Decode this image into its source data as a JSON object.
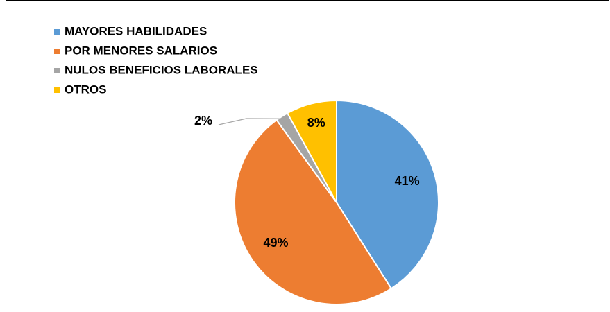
{
  "chart_data": {
    "type": "pie",
    "categories": [
      "MAYORES HABILIDADES",
      "POR MENORES SALARIOS",
      "NULOS BENEFICIOS LABORALES",
      "OTROS"
    ],
    "values": [
      41,
      49,
      2,
      8
    ],
    "value_labels": [
      "41%",
      "49%",
      "2%",
      "8%"
    ],
    "colors": [
      "#5b9bd5",
      "#ed7d31",
      "#a5a5a5",
      "#ffc000"
    ],
    "legend": "top-left"
  }
}
